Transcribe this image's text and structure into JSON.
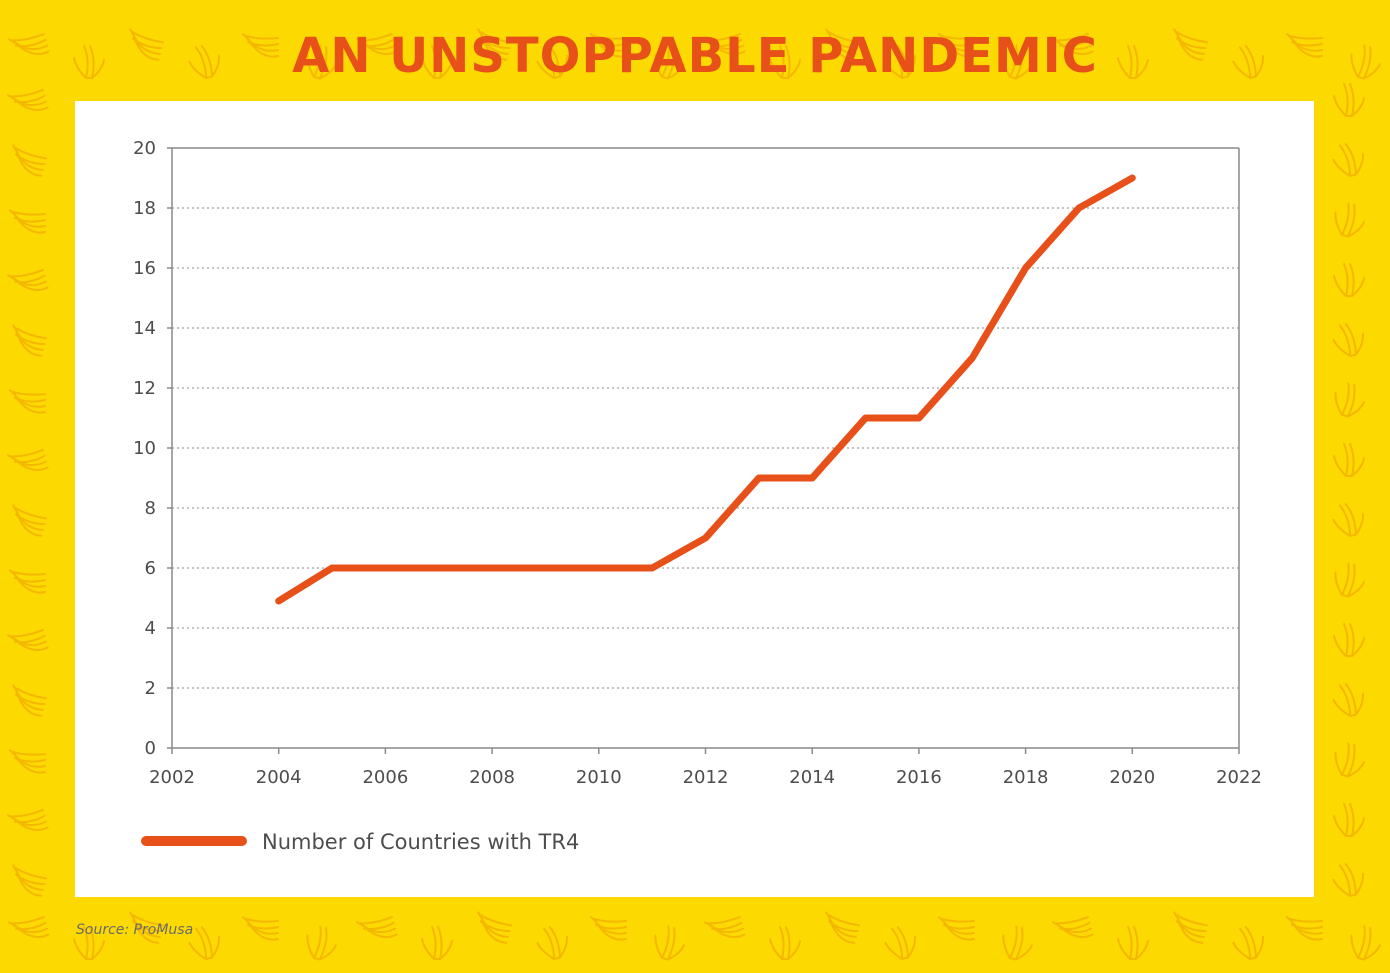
{
  "title": "AN UNSTOPPABLE PANDEMIC",
  "source": "Source: ProMusa",
  "colors": {
    "background": "#fcd900",
    "title": "#e8501a",
    "line": "#e8501a",
    "panel": "#ffffff",
    "pattern": "#f5b800"
  },
  "decoration_icon": "banana-icon",
  "chart_data": {
    "type": "line",
    "x": [
      2004,
      2005,
      2006,
      2007,
      2008,
      2009,
      2010,
      2011,
      2012,
      2013,
      2014,
      2015,
      2016,
      2017,
      2018,
      2019,
      2020
    ],
    "series": [
      {
        "name": "Number of Countries with TR4",
        "values": [
          4.9,
          6,
          6,
          6,
          6,
          6,
          6,
          6,
          7,
          9,
          9,
          11,
          11,
          13,
          16,
          18,
          19
        ]
      }
    ],
    "xlim": [
      2002,
      2022
    ],
    "ylim": [
      0,
      20
    ],
    "x_ticks": [
      "2002",
      "2004",
      "2006",
      "2008",
      "2010",
      "2012",
      "2014",
      "2016",
      "2018",
      "2020",
      "2022"
    ],
    "y_ticks": [
      "0",
      "2",
      "4",
      "6",
      "8",
      "10",
      "12",
      "14",
      "16",
      "18",
      "20"
    ],
    "grid": "horizontal dotted",
    "legend_position": "bottom-left"
  }
}
